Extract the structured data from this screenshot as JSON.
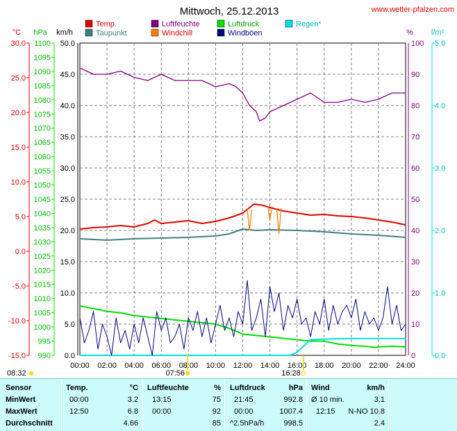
{
  "title": "Mittwoch, 25.12.2013",
  "site": "www.wetter-pfalzen.com",
  "colors": {
    "temp": "#e00000",
    "dewpoint": "#3f8080",
    "humidity": "#800080",
    "windchill": "#ff8000",
    "pressure": "#00e000",
    "gusts": "#000080",
    "rain": "#00e0e0"
  },
  "axes": {
    "temp_unit": "°C",
    "pressure_unit": "hPa",
    "wind_unit": "km/h",
    "hum_unit": "%",
    "rain_unit": "l/m²",
    "temp_ticks": [
      "30.0",
      "25.0",
      "20.0",
      "15.0",
      "10.0",
      "5.0",
      "0.0",
      "-5.0",
      "-10.0",
      "-15.0"
    ],
    "pressure_ticks": [
      "1100",
      "1095",
      "1090",
      "1085",
      "1080",
      "1075",
      "1070",
      "1065",
      "1060",
      "1055",
      "1050",
      "1045",
      "1040",
      "1035",
      "1030",
      "1025",
      "1020",
      "1015",
      "1010",
      "1005",
      "1000",
      "995",
      "990"
    ],
    "wind_ticks": [
      "50.0",
      "45.0",
      "40.0",
      "35.0",
      "30.0",
      "25.0",
      "20.0",
      "15.0",
      "10.0",
      "5.0",
      "0.0"
    ],
    "hum_ticks": [
      "100",
      "90",
      "80",
      "70",
      "60",
      "50",
      "40",
      "30",
      "20",
      "10",
      "0"
    ],
    "rain_ticks": [
      "5.0",
      "4.0",
      "3.0",
      "2.0",
      "1.0",
      "0.0"
    ],
    "time_ticks": [
      "00:00",
      "02:00",
      "04:00",
      "06:00",
      "08:00",
      "10:00",
      "12:00",
      "14:00",
      "16:00",
      "18:00",
      "20:00",
      "22:00",
      "24:00"
    ]
  },
  "sun": {
    "sunrise": "07:56",
    "sunset": "16:28",
    "moonrise": "08:32"
  },
  "chart_data": {
    "type": "line",
    "title": "Mittwoch, 25.12.2013",
    "x_range": [
      "00:00",
      "24:00"
    ],
    "grid": true,
    "legend_placement": "top",
    "series": [
      {
        "name": "Temp.",
        "axis": "°C",
        "ylim": [
          -15,
          30
        ],
        "x": [
          "00:00",
          "01:00",
          "02:00",
          "03:00",
          "04:00",
          "05:00",
          "05:30",
          "06:00",
          "07:00",
          "08:00",
          "09:00",
          "10:00",
          "11:00",
          "12:00",
          "12:50",
          "13:30",
          "14:00",
          "15:00",
          "16:00",
          "17:00",
          "18:00",
          "19:00",
          "20:00",
          "21:00",
          "22:00",
          "23:00",
          "24:00"
        ],
        "values": [
          3.2,
          3.4,
          3.5,
          3.7,
          3.5,
          4.0,
          4.5,
          4.0,
          4.2,
          4.4,
          4.0,
          4.3,
          4.8,
          5.5,
          6.8,
          6.6,
          6.3,
          5.8,
          5.5,
          5.2,
          5.3,
          5.1,
          5.0,
          4.8,
          4.5,
          4.2,
          3.8
        ]
      },
      {
        "name": "Taupunkt",
        "axis": "°C",
        "ylim": [
          -15,
          30
        ],
        "x": [
          "00:00",
          "02:00",
          "04:00",
          "06:00",
          "08:00",
          "10:00",
          "11:00",
          "12:00",
          "13:00",
          "14:00",
          "16:00",
          "18:00",
          "20:00",
          "22:00",
          "24:00"
        ],
        "values": [
          1.8,
          1.6,
          1.8,
          1.9,
          2.0,
          2.2,
          2.5,
          3.2,
          3.0,
          3.1,
          3.0,
          2.8,
          2.5,
          2.3,
          2.0
        ]
      },
      {
        "name": "Luftfeuchte",
        "axis": "%",
        "ylim": [
          0,
          100
        ],
        "x": [
          "00:00",
          "00:30",
          "01:00",
          "02:00",
          "03:00",
          "04:00",
          "05:00",
          "06:00",
          "07:00",
          "08:00",
          "09:00",
          "10:00",
          "11:00",
          "11:30",
          "12:00",
          "12:30",
          "13:00",
          "13:15",
          "13:40",
          "14:00",
          "15:00",
          "16:00",
          "17:00",
          "18:00",
          "19:00",
          "20:00",
          "21:00",
          "22:00",
          "23:00",
          "24:00"
        ],
        "values": [
          92,
          91,
          90,
          90,
          91,
          89,
          88,
          90,
          88,
          88,
          88,
          86,
          87,
          86,
          84,
          80,
          78,
          75,
          76,
          78,
          80,
          82,
          84,
          81,
          81,
          82,
          81,
          82,
          84,
          84
        ]
      },
      {
        "name": "Luftdruck",
        "axis": "hPa",
        "ylim": [
          990,
          1100
        ],
        "x": [
          "00:00",
          "01:00",
          "02:00",
          "03:00",
          "04:00",
          "05:00",
          "06:00",
          "07:00",
          "08:00",
          "09:00",
          "10:00",
          "11:00",
          "12:00",
          "13:00",
          "14:00",
          "15:00",
          "16:00",
          "17:00",
          "18:00",
          "19:00",
          "20:00",
          "21:00",
          "21:45",
          "22:00",
          "23:00",
          "24:00"
        ],
        "values": [
          1007.4,
          1006.5,
          1005.5,
          1005.0,
          1004.0,
          1003.5,
          1003.0,
          1002.5,
          1002.0,
          1001.5,
          1001.0,
          999.5,
          997.5,
          997.0,
          996.5,
          996.0,
          995.5,
          995.0,
          995.0,
          994.0,
          993.5,
          993.2,
          992.8,
          993.0,
          993.2,
          993.0
        ]
      },
      {
        "name": "Windchill",
        "axis": "°C",
        "ylim": [
          -15,
          30
        ],
        "x": [
          "12:20",
          "12:30",
          "12:40",
          "13:50",
          "14:00",
          "14:10",
          "14:30",
          "14:40",
          "14:50"
        ],
        "values": [
          6.0,
          3.0,
          6.0,
          6.5,
          4.5,
          6.5,
          6.2,
          2.5,
          6.2
        ]
      },
      {
        "name": "Windböen",
        "axis": "km/h",
        "ylim": [
          0,
          50
        ],
        "x": [
          "00:00",
          "00:20",
          "00:40",
          "01:00",
          "01:20",
          "01:40",
          "02:00",
          "02:20",
          "02:40",
          "03:00",
          "03:20",
          "03:40",
          "04:00",
          "04:20",
          "04:40",
          "05:00",
          "05:20",
          "05:40",
          "06:00",
          "06:20",
          "06:40",
          "07:00",
          "07:20",
          "07:40",
          "08:00",
          "08:20",
          "08:40",
          "09:00",
          "09:20",
          "09:40",
          "10:00",
          "10:20",
          "10:40",
          "11:00",
          "11:20",
          "11:40",
          "12:00",
          "12:20",
          "12:40",
          "13:00",
          "13:20",
          "13:40",
          "14:00",
          "14:20",
          "14:40",
          "15:00",
          "15:20",
          "15:40",
          "16:00",
          "16:20",
          "16:40",
          "17:00",
          "17:20",
          "17:40",
          "18:00",
          "18:20",
          "18:40",
          "19:00",
          "19:20",
          "19:40",
          "20:00",
          "20:20",
          "20:40",
          "21:00",
          "21:20",
          "21:40",
          "22:00",
          "22:20",
          "22:40",
          "23:00",
          "23:20",
          "23:40",
          "24:00"
        ],
        "values": [
          6,
          2,
          4,
          7,
          1,
          5,
          3,
          0,
          6,
          2,
          4,
          1,
          5,
          2,
          6,
          3,
          0,
          7,
          4,
          6,
          2,
          3,
          5,
          1,
          6,
          4,
          7,
          3,
          6,
          2,
          5,
          8,
          4,
          6,
          3,
          7,
          5,
          12,
          4,
          6,
          9,
          3,
          11,
          7,
          10,
          4,
          8,
          6,
          9,
          5,
          6,
          3,
          7,
          5,
          9,
          4,
          8,
          5,
          7,
          8,
          6,
          9,
          4,
          7,
          5,
          6,
          4,
          6,
          11,
          5,
          8,
          4,
          5
        ]
      },
      {
        "name": "Regen*",
        "axis": "l/m²",
        "ylim": [
          0,
          5
        ],
        "x": [
          "00:00",
          "15:30",
          "16:00",
          "16:30",
          "17:00",
          "18:00",
          "20:00",
          "22:00",
          "24:00"
        ],
        "values": [
          0,
          0,
          0.05,
          0.15,
          0.25,
          0.26,
          0.27,
          0.27,
          0.27
        ]
      }
    ]
  },
  "stats": {
    "headers": {
      "sensor": "Sensor",
      "temp": "Temp.",
      "temp_unit": "°C",
      "hum": "Luftfeuchte",
      "hum_unit": "%",
      "press": "Luftdruck",
      "press_unit": "hPa",
      "wind": "Wind",
      "wind_unit": "km/h"
    },
    "rows": [
      {
        "label": "MinWert",
        "temp_time": "00:00",
        "temp_val": "3.2",
        "hum_time": "13:15",
        "hum_val": "75",
        "press_time": "21:45",
        "press_val": "992.8",
        "wind_time": "Ø 10 min.",
        "wind_val": "3.1"
      },
      {
        "label": "MaxWert",
        "temp_time": "12:50",
        "temp_val": "6.8",
        "hum_time": "00:00",
        "hum_val": "92",
        "press_time": "00:00",
        "press_val": "1007.4",
        "wind_time": "12:15",
        "wind_val": "N-NO 10.8"
      },
      {
        "label": "Durchschnitt",
        "temp_time": "",
        "temp_val": "4.66",
        "hum_time": "",
        "hum_val": "85",
        "press_time": "^2.5hPa/h",
        "press_val": "998.5",
        "wind_time": "",
        "wind_val": "2.4"
      }
    ]
  }
}
